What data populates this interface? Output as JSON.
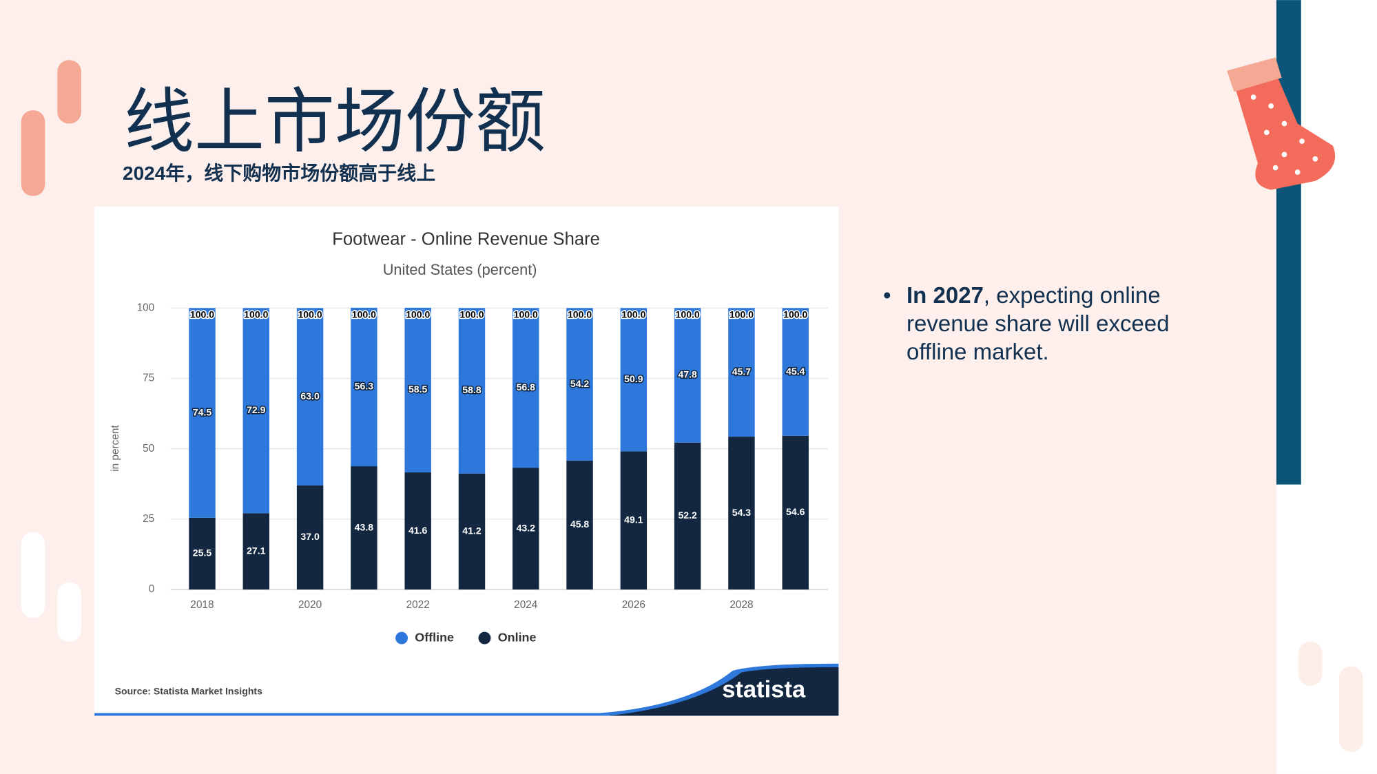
{
  "slide": {
    "title": "线上市场份额",
    "subtitle": "2024年，线下购物市场份额高于线上",
    "bullet": {
      "bold": "In 2027",
      "text": ", expecting online revenue share will exceed offline market."
    }
  },
  "chart_data": {
    "type": "stacked-bar",
    "title": "Footwear - Online Revenue Share",
    "subtitle": "United States (percent)",
    "y_label": "in percent",
    "categories": [
      "2018",
      null,
      "2020",
      null,
      "2022",
      null,
      "2024",
      null,
      "2026",
      null,
      "2028",
      null
    ],
    "series": [
      {
        "name": "Offline",
        "color": "#2e78dc",
        "values": [
          74.5,
          72.9,
          63.0,
          56.3,
          58.5,
          58.8,
          56.8,
          54.2,
          50.9,
          47.8,
          45.7,
          45.4
        ],
        "value_labels": [
          "74.5",
          "72.9",
          "63.0",
          "56.3",
          "58.5",
          "58.8",
          "56.8",
          "54.2",
          "50.9",
          "47.8",
          "45.7",
          "45.4"
        ]
      },
      {
        "name": "Online",
        "color": "#132840",
        "values": [
          25.5,
          27.1,
          37.0,
          43.8,
          41.6,
          41.2,
          43.2,
          45.8,
          49.1,
          52.2,
          54.3,
          54.6
        ],
        "value_labels": [
          "25.5",
          "27.1",
          "37.0",
          "43.8",
          "41.6",
          "41.2",
          "43.2",
          "45.8",
          "49.1",
          "52.2",
          "54.3",
          "54.6"
        ]
      }
    ],
    "totals": {
      "values": [
        100,
        100,
        100,
        100,
        100,
        100,
        100,
        100,
        100,
        100,
        100,
        100
      ],
      "value_labels": [
        "100.0",
        "100.0",
        "100.0",
        "100.0",
        "100.0",
        "100.0",
        "100.0",
        "100.0",
        "100.0",
        "100.0",
        "100.0",
        "100.0"
      ]
    },
    "ylim": [
      0,
      100
    ],
    "yticks": [
      0,
      25,
      50,
      75,
      100
    ],
    "grid": true,
    "legend": "bottom",
    "source": "Source: Statista Market Insights",
    "logo": "statista"
  }
}
